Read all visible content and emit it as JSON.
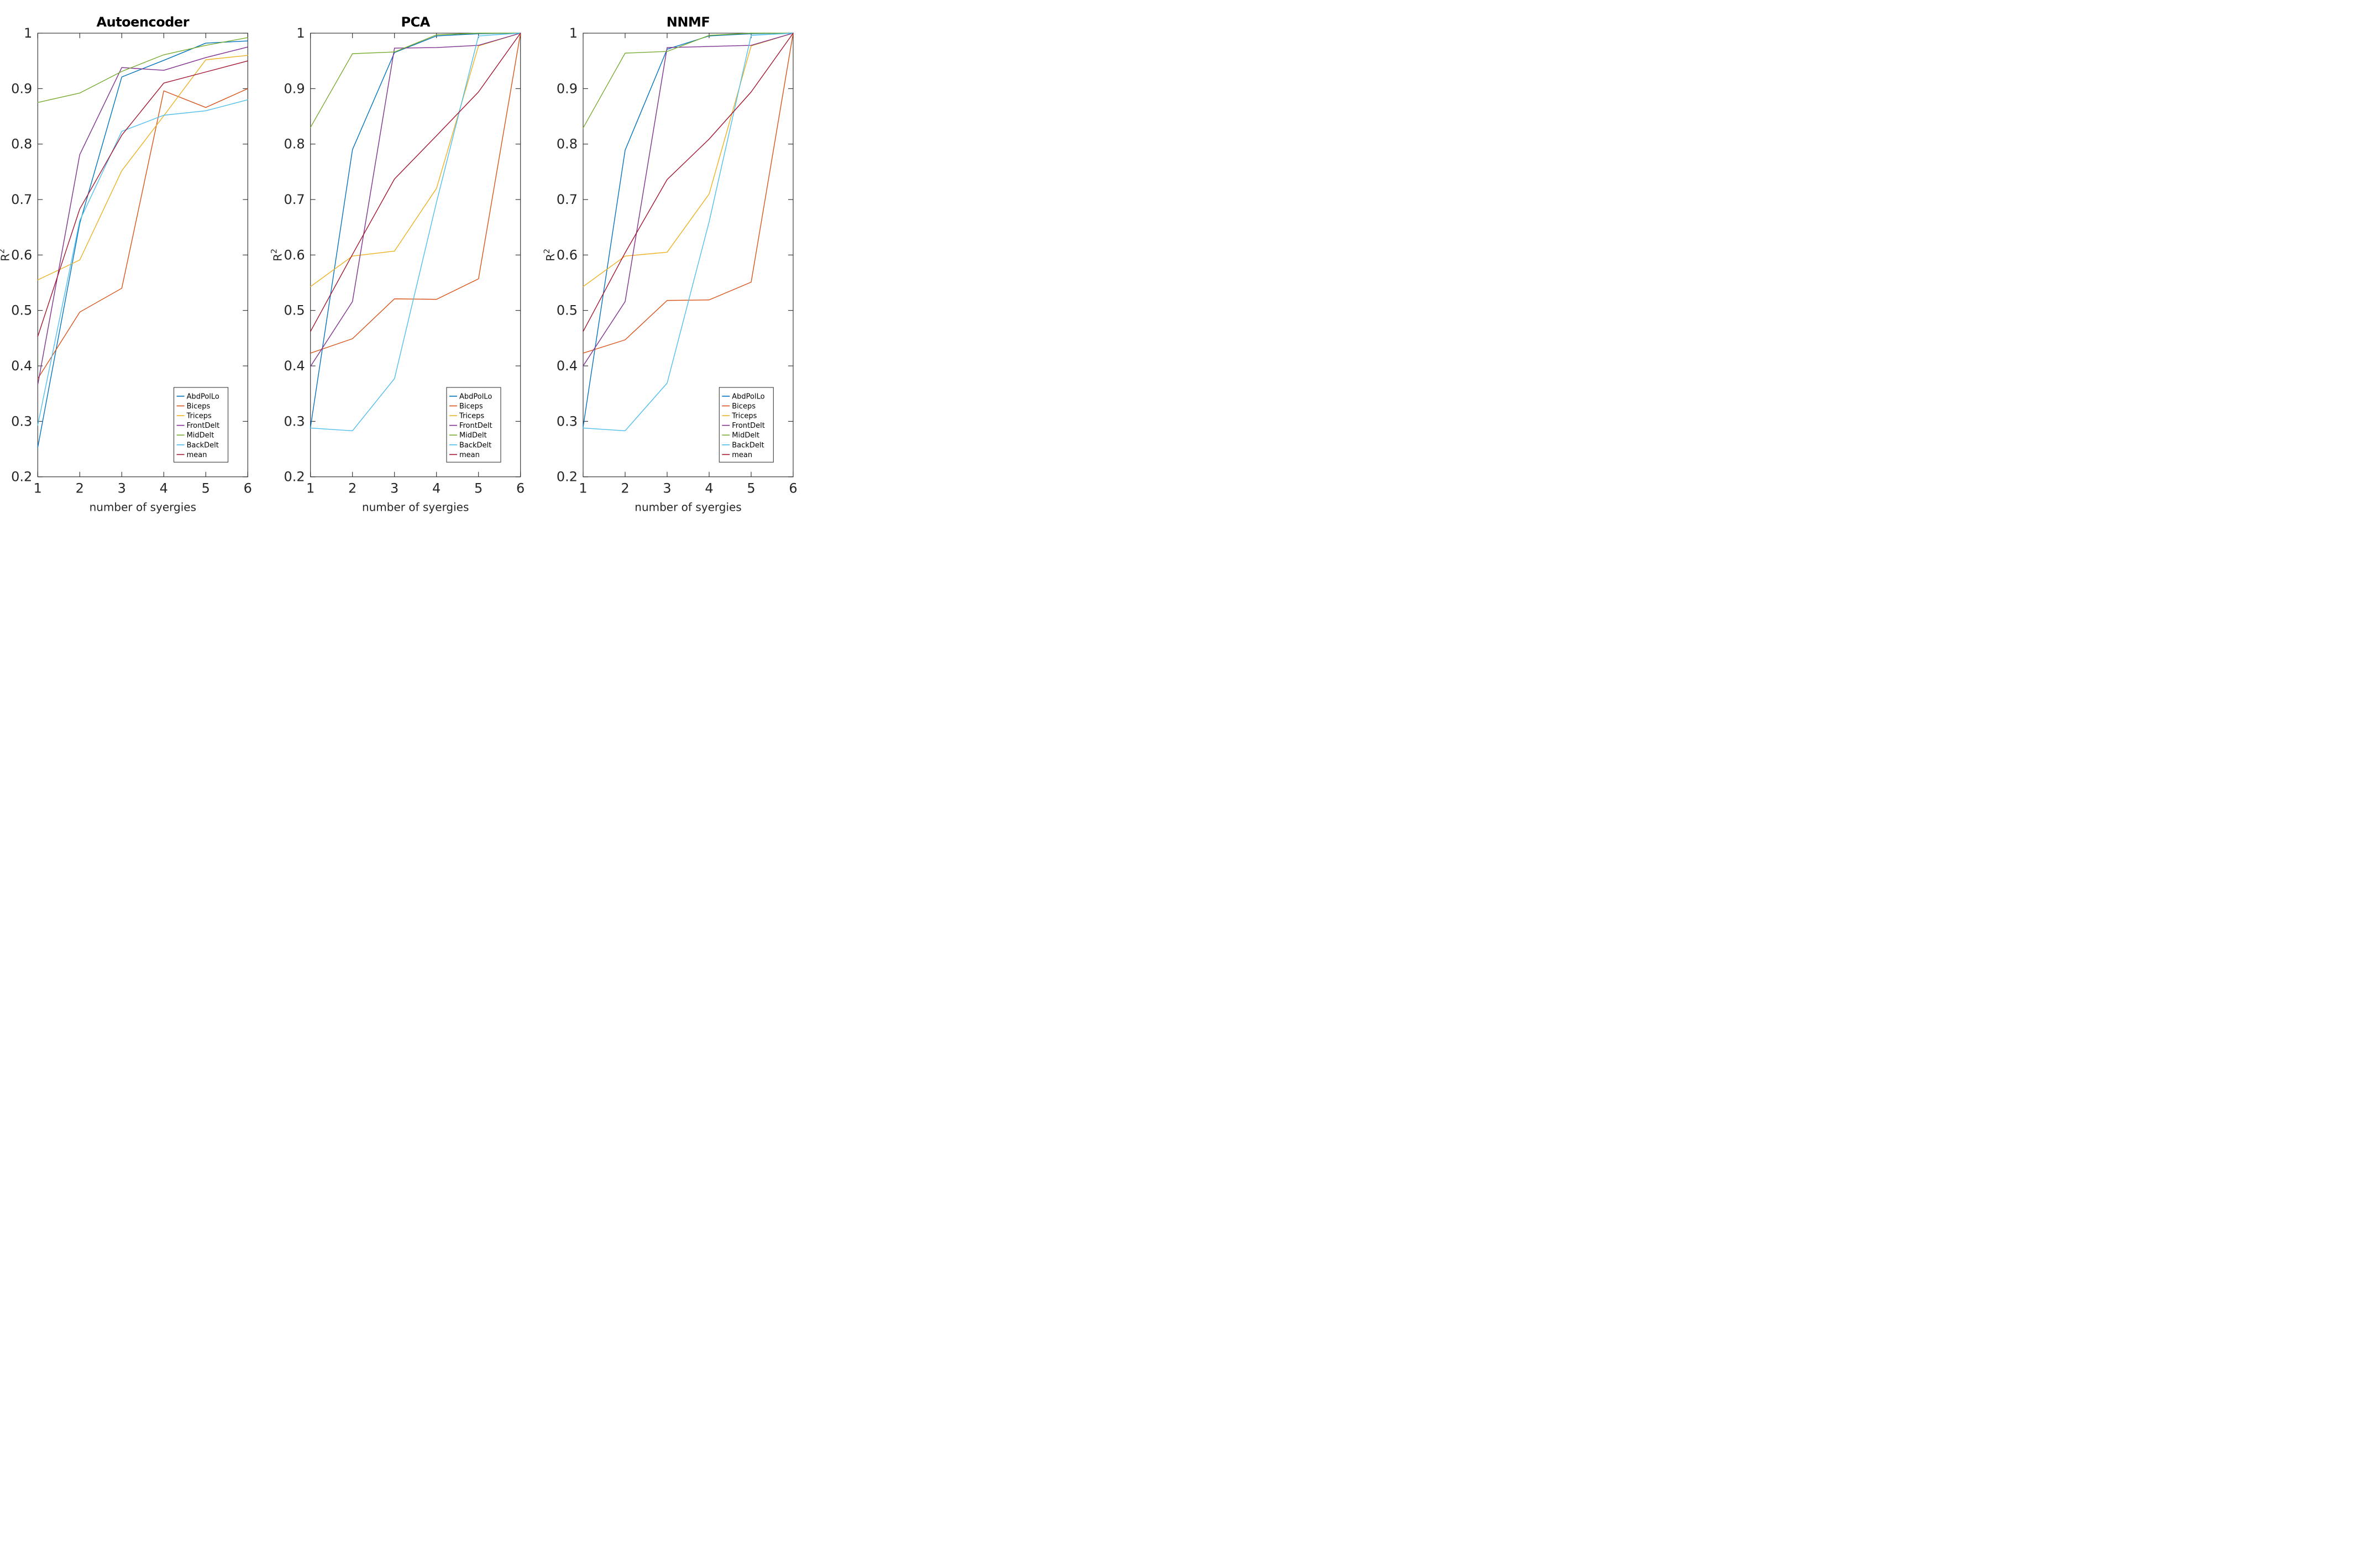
{
  "figure": {
    "background_color": "#ffffff",
    "axis_color": "#262626",
    "title_color": "#000000"
  },
  "chart_data": [
    {
      "type": "line",
      "title": "Autoencoder",
      "xlabel": "number of syergies",
      "ylabel": "R",
      "ylabel_sup": "2",
      "xlim": [
        1,
        6
      ],
      "ylim": [
        0.2,
        1
      ],
      "x_ticks": [
        "1",
        "2",
        "3",
        "4",
        "5",
        "6"
      ],
      "y_ticks": [
        "0.2",
        "0.3",
        "0.4",
        "0.5",
        "0.6",
        "0.7",
        "0.8",
        "0.9",
        "1"
      ],
      "grid": false,
      "legend_position": "southeast",
      "x": [
        1,
        2,
        3,
        4,
        5,
        6
      ],
      "series": [
        {
          "name": "AbdPolLo",
          "color": "#0072BD",
          "values": [
            0.253,
            0.657,
            0.921,
            0.951,
            0.982,
            0.986
          ]
        },
        {
          "name": "Biceps",
          "color": "#D95319",
          "values": [
            0.377,
            0.497,
            0.54,
            0.896,
            0.866,
            0.9
          ]
        },
        {
          "name": "Triceps",
          "color": "#EDB120",
          "values": [
            0.555,
            0.591,
            0.752,
            0.851,
            0.952,
            0.96
          ]
        },
        {
          "name": "FrontDelt",
          "color": "#7E2F8E",
          "values": [
            0.366,
            0.781,
            0.938,
            0.933,
            0.956,
            0.975
          ]
        },
        {
          "name": "MidDelt",
          "color": "#77AC30",
          "values": [
            0.875,
            0.892,
            0.931,
            0.961,
            0.978,
            0.992
          ]
        },
        {
          "name": "BackDelt",
          "color": "#4DBEEE",
          "values": [
            0.293,
            0.662,
            0.823,
            0.852,
            0.86,
            0.88
          ]
        },
        {
          "name": "mean",
          "color": "#A2142F",
          "values": [
            0.453,
            0.683,
            0.816,
            0.91,
            0.93,
            0.95
          ]
        }
      ]
    },
    {
      "type": "line",
      "title": "PCA",
      "xlabel": "number of syergies",
      "ylabel": "R",
      "ylabel_sup": "2",
      "xlim": [
        1,
        6
      ],
      "ylim": [
        0.2,
        1
      ],
      "x_ticks": [
        "1",
        "2",
        "3",
        "4",
        "5",
        "6"
      ],
      "y_ticks": [
        "0.2",
        "0.3",
        "0.4",
        "0.5",
        "0.6",
        "0.7",
        "0.8",
        "0.9",
        "1"
      ],
      "grid": false,
      "legend_position": "southeast",
      "x": [
        1,
        2,
        3,
        4,
        5,
        6
      ],
      "series": [
        {
          "name": "AbdPolLo",
          "color": "#0072BD",
          "values": [
            0.289,
            0.79,
            0.965,
            0.995,
            0.999,
            1.0
          ]
        },
        {
          "name": "Biceps",
          "color": "#D95319",
          "values": [
            0.423,
            0.449,
            0.521,
            0.52,
            0.557,
            1.0
          ]
        },
        {
          "name": "Triceps",
          "color": "#EDB120",
          "values": [
            0.543,
            0.598,
            0.607,
            0.72,
            0.977,
            1.0
          ]
        },
        {
          "name": "FrontDelt",
          "color": "#7E2F8E",
          "values": [
            0.399,
            0.516,
            0.973,
            0.974,
            0.978,
            1.0
          ]
        },
        {
          "name": "MidDelt",
          "color": "#77AC30",
          "values": [
            0.83,
            0.963,
            0.966,
            0.997,
            1.0,
            1.0
          ]
        },
        {
          "name": "BackDelt",
          "color": "#4DBEEE",
          "values": [
            0.288,
            0.283,
            0.377,
            0.695,
            0.995,
            1.0
          ]
        },
        {
          "name": "mean",
          "color": "#A2142F",
          "values": [
            0.462,
            0.601,
            0.737,
            0.815,
            0.894,
            1.0
          ]
        }
      ]
    },
    {
      "type": "line",
      "title": "NNMF",
      "xlabel": "number of syergies",
      "ylabel": "R",
      "ylabel_sup": "2",
      "xlim": [
        1,
        6
      ],
      "ylim": [
        0.2,
        1
      ],
      "x_ticks": [
        "1",
        "2",
        "3",
        "4",
        "5",
        "6"
      ],
      "y_ticks": [
        "0.2",
        "0.3",
        "0.4",
        "0.5",
        "0.6",
        "0.7",
        "0.8",
        "0.9",
        "1"
      ],
      "grid": false,
      "legend_position": "southeast",
      "x": [
        1,
        2,
        3,
        4,
        5,
        6
      ],
      "series": [
        {
          "name": "AbdPolLo",
          "color": "#0072BD",
          "values": [
            0.29,
            0.789,
            0.971,
            0.995,
            0.999,
            1.0
          ]
        },
        {
          "name": "Biceps",
          "color": "#D95319",
          "values": [
            0.423,
            0.447,
            0.518,
            0.519,
            0.551,
            1.0
          ]
        },
        {
          "name": "Triceps",
          "color": "#EDB120",
          "values": [
            0.543,
            0.598,
            0.605,
            0.71,
            0.977,
            1.0
          ]
        },
        {
          "name": "FrontDelt",
          "color": "#7E2F8E",
          "values": [
            0.4,
            0.516,
            0.974,
            0.976,
            0.978,
            1.0
          ]
        },
        {
          "name": "MidDelt",
          "color": "#77AC30",
          "values": [
            0.829,
            0.964,
            0.967,
            0.996,
            1.0,
            1.0
          ]
        },
        {
          "name": "BackDelt",
          "color": "#4DBEEE",
          "values": [
            0.288,
            0.283,
            0.369,
            0.66,
            0.996,
            1.0
          ]
        },
        {
          "name": "mean",
          "color": "#A2142F",
          "values": [
            0.462,
            0.604,
            0.736,
            0.809,
            0.894,
            1.0
          ]
        }
      ]
    }
  ]
}
